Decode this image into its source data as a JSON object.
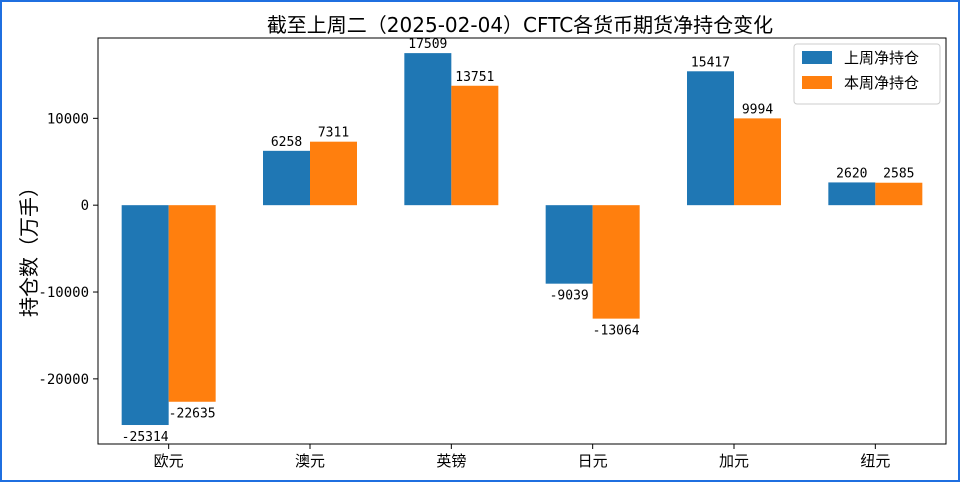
{
  "chart_data": {
    "type": "bar",
    "title": "截至上周二（2025-02-04）CFTC各货币期货净持仓变化",
    "xlabel": "",
    "ylabel": "持仓数（万手）",
    "categories": [
      "欧元",
      "澳元",
      "英镑",
      "日元",
      "加元",
      "纽元"
    ],
    "series": [
      {
        "name": "上周净持仓",
        "values": [
          -25314,
          6258,
          17509,
          -9039,
          15417,
          2620
        ],
        "color": "#1f77b4"
      },
      {
        "name": "本周净持仓",
        "values": [
          -22635,
          7311,
          13751,
          -13064,
          9994,
          2585
        ],
        "color": "#ff7f0e"
      }
    ],
    "ylim": [
      -27500,
      19250
    ],
    "yticks": [
      -20000,
      -10000,
      0,
      10000
    ],
    "yticklabels": [
      "-20000",
      "-10000",
      "0",
      "10000"
    ],
    "grid": false,
    "legend": "top-right"
  }
}
